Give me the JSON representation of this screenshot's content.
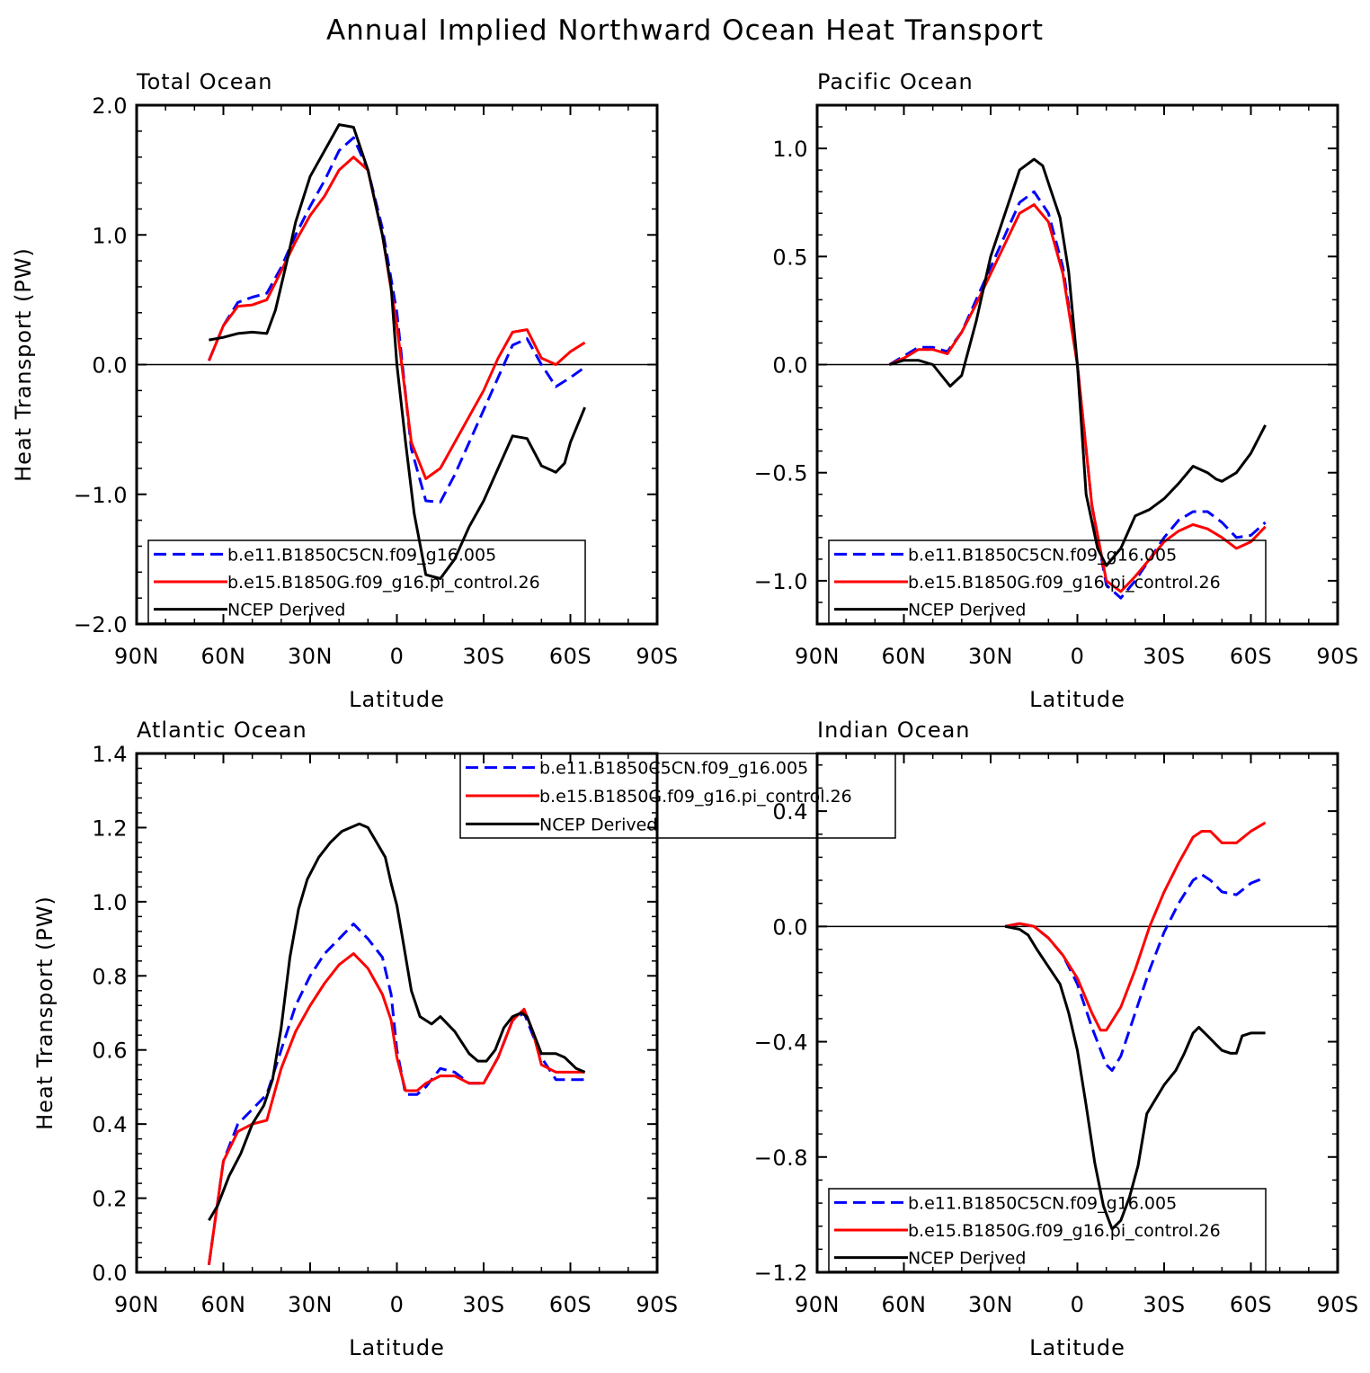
{
  "title": "Annual Implied Northward Ocean Heat Transport",
  "colors": {
    "model1": "#0000ff",
    "model2": "#ff0000",
    "obs": "#000000",
    "zero_line": "#000000"
  },
  "chart_data": [
    {
      "type": "line",
      "title": "Total Ocean",
      "xlabel": "Latitude",
      "ylabel": "Heat Transport (PW)",
      "xticks": [
        "90N",
        "60N",
        "30N",
        "0",
        "30S",
        "60S",
        "90S"
      ],
      "xlim": [
        90,
        -90
      ],
      "ylim": [
        -2.0,
        2.0
      ],
      "yticks": [
        "-2.0",
        "-1.0",
        "0.0",
        "1.0",
        "2.0"
      ],
      "ytick_values": [
        -2.0,
        -1.0,
        0.0,
        1.0,
        2.0
      ],
      "zero_line": true,
      "legend": {
        "position": "bottom-left",
        "entries": [
          "b.e11.B1850C5CN.f09_g16.005",
          "b.e15.B1850G.f09_g16.pi_control.26",
          "NCEP Derived"
        ]
      },
      "series": [
        {
          "name": "b.e11.B1850C5CN.f09_g16.005",
          "style": "dashed",
          "color": "#0000ff",
          "x": [
            65,
            60,
            55,
            50,
            45,
            40,
            35,
            30,
            25,
            20,
            15,
            10,
            5,
            0,
            -5,
            -10,
            -15,
            -20,
            -25,
            -30,
            -35,
            -40,
            -45,
            -50,
            -55,
            -60,
            -65
          ],
          "y": [
            0.03,
            0.3,
            0.48,
            0.52,
            0.55,
            0.75,
            1.0,
            1.22,
            1.42,
            1.65,
            1.75,
            1.5,
            1.05,
            0.4,
            -0.65,
            -1.05,
            -1.06,
            -0.85,
            -0.6,
            -0.35,
            -0.1,
            0.15,
            0.2,
            0.0,
            -0.17,
            -0.1,
            -0.02
          ]
        },
        {
          "name": "b.e15.B1850G.f09_g16.pi_control.26",
          "style": "solid",
          "color": "#ff0000",
          "x": [
            65,
            60,
            55,
            50,
            45,
            40,
            35,
            30,
            25,
            20,
            15,
            10,
            5,
            0,
            -5,
            -10,
            -15,
            -20,
            -25,
            -30,
            -35,
            -40,
            -45,
            -50,
            -55,
            -60,
            -65
          ],
          "y": [
            0.03,
            0.3,
            0.45,
            0.46,
            0.5,
            0.72,
            0.95,
            1.15,
            1.3,
            1.5,
            1.6,
            1.5,
            1.0,
            0.3,
            -0.6,
            -0.88,
            -0.8,
            -0.6,
            -0.4,
            -0.2,
            0.05,
            0.25,
            0.27,
            0.05,
            0.0,
            0.1,
            0.17
          ]
        },
        {
          "name": "NCEP Derived",
          "style": "solid",
          "color": "#000000",
          "x": [
            65,
            60,
            55,
            50,
            45,
            42,
            38,
            35,
            30,
            25,
            20,
            15,
            10,
            5,
            2,
            0,
            -3,
            -6,
            -10,
            -15,
            -20,
            -25,
            -30,
            -35,
            -40,
            -45,
            -50,
            -55,
            -58,
            -60,
            -65
          ],
          "y": [
            0.19,
            0.21,
            0.24,
            0.25,
            0.24,
            0.42,
            0.8,
            1.1,
            1.45,
            1.65,
            1.85,
            1.83,
            1.5,
            1.0,
            0.6,
            0.0,
            -0.6,
            -1.15,
            -1.62,
            -1.65,
            -1.5,
            -1.25,
            -1.05,
            -0.8,
            -0.55,
            -0.57,
            -0.78,
            -0.83,
            -0.76,
            -0.6,
            -0.33
          ]
        }
      ]
    },
    {
      "type": "line",
      "title": "Pacific Ocean",
      "xlabel": "Latitude",
      "ylabel": "",
      "xticks": [
        "90N",
        "60N",
        "30N",
        "0",
        "30S",
        "60S",
        "90S"
      ],
      "xlim": [
        90,
        -90
      ],
      "ylim": [
        -1.2,
        1.2
      ],
      "yticks": [
        "-1.0",
        "-0.5",
        "0.0",
        "0.5",
        "1.0"
      ],
      "ytick_values": [
        -1.0,
        -0.5,
        0.0,
        0.5,
        1.0
      ],
      "zero_line": true,
      "legend": {
        "position": "bottom-left",
        "entries": [
          "b.e11.B1850C5CN.f09_g16.005",
          "b.e15.B1850G.f09_g16.pi_control.26",
          "NCEP Derived"
        ]
      },
      "series": [
        {
          "name": "b.e11.B1850C5CN.f09_g16.005",
          "style": "dashed",
          "color": "#0000ff",
          "x": [
            65,
            60,
            55,
            50,
            45,
            40,
            35,
            30,
            25,
            20,
            15,
            10,
            5,
            0,
            -5,
            -10,
            -15,
            -20,
            -25,
            -30,
            -35,
            -40,
            -45,
            -50,
            -55,
            -60,
            -65
          ],
          "y": [
            0.0,
            0.04,
            0.08,
            0.08,
            0.06,
            0.15,
            0.3,
            0.45,
            0.6,
            0.75,
            0.8,
            0.7,
            0.45,
            0.0,
            -0.65,
            -1.02,
            -1.08,
            -1.0,
            -0.9,
            -0.8,
            -0.72,
            -0.68,
            -0.68,
            -0.73,
            -0.8,
            -0.79,
            -0.73
          ]
        },
        {
          "name": "b.e15.B1850G.f09_g16.pi_control.26",
          "style": "solid",
          "color": "#ff0000",
          "x": [
            65,
            60,
            55,
            50,
            45,
            40,
            35,
            30,
            25,
            20,
            15,
            10,
            5,
            0,
            -5,
            -10,
            -15,
            -20,
            -25,
            -30,
            -35,
            -40,
            -45,
            -50,
            -55,
            -60,
            -65
          ],
          "y": [
            0.0,
            0.03,
            0.07,
            0.07,
            0.05,
            0.15,
            0.28,
            0.42,
            0.56,
            0.7,
            0.74,
            0.66,
            0.42,
            0.0,
            -0.65,
            -1.0,
            -1.05,
            -0.98,
            -0.9,
            -0.82,
            -0.77,
            -0.74,
            -0.76,
            -0.8,
            -0.85,
            -0.82,
            -0.75
          ]
        },
        {
          "name": "NCEP Derived",
          "style": "solid",
          "color": "#000000",
          "x": [
            65,
            60,
            55,
            50,
            47,
            44,
            40,
            35,
            30,
            25,
            20,
            15,
            12,
            9,
            6,
            3,
            0,
            -3,
            -7,
            -10,
            -15,
            -20,
            -25,
            -30,
            -35,
            -40,
            -45,
            -48,
            -50,
            -55,
            -60,
            -65
          ],
          "y": [
            0.0,
            0.02,
            0.02,
            0.0,
            -0.05,
            -0.1,
            -0.05,
            0.2,
            0.5,
            0.7,
            0.9,
            0.95,
            0.92,
            0.8,
            0.68,
            0.43,
            0.0,
            -0.6,
            -0.85,
            -0.93,
            -0.85,
            -0.7,
            -0.67,
            -0.62,
            -0.55,
            -0.47,
            -0.5,
            -0.53,
            -0.54,
            -0.5,
            -0.41,
            -0.28
          ]
        }
      ]
    },
    {
      "type": "line",
      "title": "Atlantic Ocean",
      "xlabel": "Latitude",
      "ylabel": "Heat Transport (PW)",
      "xticks": [
        "90N",
        "60N",
        "30N",
        "0",
        "30S",
        "60S",
        "90S"
      ],
      "xlim": [
        90,
        -90
      ],
      "ylim": [
        0.0,
        1.4
      ],
      "yticks": [
        "0.0",
        "0.2",
        "0.4",
        "0.6",
        "0.8",
        "1.0",
        "1.2",
        "1.4"
      ],
      "ytick_values": [
        0.0,
        0.2,
        0.4,
        0.6,
        0.8,
        1.0,
        1.2,
        1.4
      ],
      "zero_line": false,
      "legend": {
        "position": "top-right",
        "entries": [
          "b.e11.B1850C5CN.f09_g16.005",
          "b.e15.B1850G.f09_g16.pi_control.26",
          "NCEP Derived"
        ]
      },
      "series": [
        {
          "name": "b.e11.B1850C5CN.f09_g16.005",
          "style": "dashed",
          "color": "#0000ff",
          "x": [
            65,
            60,
            55,
            50,
            45,
            40,
            35,
            30,
            25,
            20,
            15,
            10,
            5,
            2,
            0,
            -3,
            -7,
            -10,
            -15,
            -20,
            -25,
            -30,
            -35,
            -40,
            -44,
            -47,
            -50,
            -55,
            -60,
            -65
          ],
          "y": [
            0.02,
            0.3,
            0.4,
            0.44,
            0.48,
            0.6,
            0.72,
            0.8,
            0.86,
            0.9,
            0.94,
            0.9,
            0.85,
            0.75,
            0.6,
            0.48,
            0.48,
            0.5,
            0.55,
            0.54,
            0.51,
            0.51,
            0.58,
            0.68,
            0.7,
            0.64,
            0.58,
            0.52,
            0.52,
            0.52
          ]
        },
        {
          "name": "b.e15.B1850G.f09_g16.pi_control.26",
          "style": "solid",
          "color": "#ff0000",
          "x": [
            65,
            60,
            55,
            50,
            45,
            40,
            35,
            30,
            25,
            20,
            15,
            10,
            5,
            2,
            0,
            -3,
            -7,
            -10,
            -15,
            -20,
            -25,
            -30,
            -35,
            -40,
            -44,
            -47,
            -50,
            -55,
            -60,
            -65
          ],
          "y": [
            0.02,
            0.3,
            0.38,
            0.4,
            0.41,
            0.55,
            0.65,
            0.72,
            0.78,
            0.83,
            0.86,
            0.82,
            0.75,
            0.68,
            0.58,
            0.49,
            0.49,
            0.51,
            0.53,
            0.53,
            0.51,
            0.51,
            0.58,
            0.68,
            0.71,
            0.65,
            0.56,
            0.54,
            0.54,
            0.54
          ]
        },
        {
          "name": "NCEP Derived",
          "style": "solid",
          "color": "#000000",
          "x": [
            65,
            62,
            58,
            54,
            50,
            46,
            43,
            40,
            37,
            34,
            31,
            27,
            23,
            19,
            16,
            13,
            10,
            7,
            4,
            2,
            0,
            -2,
            -5,
            -8,
            -12,
            -15,
            -20,
            -25,
            -28,
            -31,
            -34,
            -37,
            -40,
            -43,
            -45,
            -48,
            -50,
            -55,
            -58,
            -62,
            -65
          ],
          "y": [
            0.14,
            0.18,
            0.26,
            0.32,
            0.4,
            0.45,
            0.52,
            0.66,
            0.85,
            0.98,
            1.06,
            1.12,
            1.16,
            1.19,
            1.2,
            1.21,
            1.2,
            1.16,
            1.12,
            1.05,
            0.99,
            0.9,
            0.76,
            0.69,
            0.67,
            0.69,
            0.65,
            0.59,
            0.57,
            0.57,
            0.6,
            0.66,
            0.69,
            0.7,
            0.69,
            0.63,
            0.59,
            0.59,
            0.58,
            0.55,
            0.54
          ]
        }
      ]
    },
    {
      "type": "line",
      "title": "Indian Ocean",
      "xlabel": "Latitude",
      "ylabel": "",
      "xticks": [
        "90N",
        "60N",
        "30N",
        "0",
        "30S",
        "60S",
        "90S"
      ],
      "xlim": [
        90,
        -90
      ],
      "ylim": [
        -1.2,
        0.6
      ],
      "yticks": [
        "-1.2",
        "-0.8",
        "-0.4",
        "0.0",
        "0.4"
      ],
      "ytick_values": [
        -1.2,
        -0.8,
        -0.4,
        0.0,
        0.4
      ],
      "zero_line": true,
      "legend": {
        "position": "bottom-left",
        "entries": [
          "b.e11.B1850C5CN.f09_g16.005",
          "b.e15.B1850G.f09_g16.pi_control.26",
          "NCEP Derived"
        ]
      },
      "series": [
        {
          "name": "b.e11.B1850C5CN.f09_g16.005",
          "style": "dashed",
          "color": "#0000ff",
          "x": [
            25,
            20,
            15,
            10,
            5,
            0,
            -5,
            -10,
            -12,
            -15,
            -20,
            -25,
            -30,
            -35,
            -40,
            -43,
            -46,
            -50,
            -55,
            -60,
            -65
          ],
          "y": [
            0.0,
            0.01,
            0.0,
            -0.04,
            -0.1,
            -0.2,
            -0.35,
            -0.48,
            -0.5,
            -0.45,
            -0.3,
            -0.15,
            -0.02,
            0.08,
            0.16,
            0.18,
            0.16,
            0.12,
            0.11,
            0.15,
            0.17
          ]
        },
        {
          "name": "b.e15.B1850G.f09_g16.pi_control.26",
          "style": "solid",
          "color": "#ff0000",
          "x": [
            25,
            20,
            15,
            10,
            5,
            0,
            -5,
            -8,
            -10,
            -15,
            -20,
            -25,
            -30,
            -35,
            -40,
            -43,
            -46,
            -50,
            -55,
            -60,
            -65
          ],
          "y": [
            0.0,
            0.01,
            0.0,
            -0.04,
            -0.1,
            -0.18,
            -0.3,
            -0.36,
            -0.36,
            -0.28,
            -0.15,
            0.0,
            0.12,
            0.22,
            0.31,
            0.33,
            0.33,
            0.29,
            0.29,
            0.33,
            0.36
          ]
        },
        {
          "name": "NCEP Derived",
          "style": "solid",
          "color": "#000000",
          "x": [
            25,
            20,
            17,
            14,
            10,
            6,
            3,
            0,
            -3,
            -6,
            -9,
            -12,
            -15,
            -18,
            -21,
            -24,
            -27,
            -30,
            -34,
            -37,
            -40,
            -42,
            -45,
            -48,
            -50,
            -53,
            -55,
            -57,
            -60,
            -65
          ],
          "y": [
            0.0,
            -0.01,
            -0.03,
            -0.08,
            -0.14,
            -0.2,
            -0.3,
            -0.43,
            -0.62,
            -0.82,
            -0.97,
            -1.05,
            -1.02,
            -0.94,
            -0.83,
            -0.65,
            -0.6,
            -0.55,
            -0.5,
            -0.44,
            -0.37,
            -0.35,
            -0.38,
            -0.41,
            -0.43,
            -0.44,
            -0.44,
            -0.38,
            -0.37,
            -0.37
          ]
        }
      ]
    }
  ]
}
